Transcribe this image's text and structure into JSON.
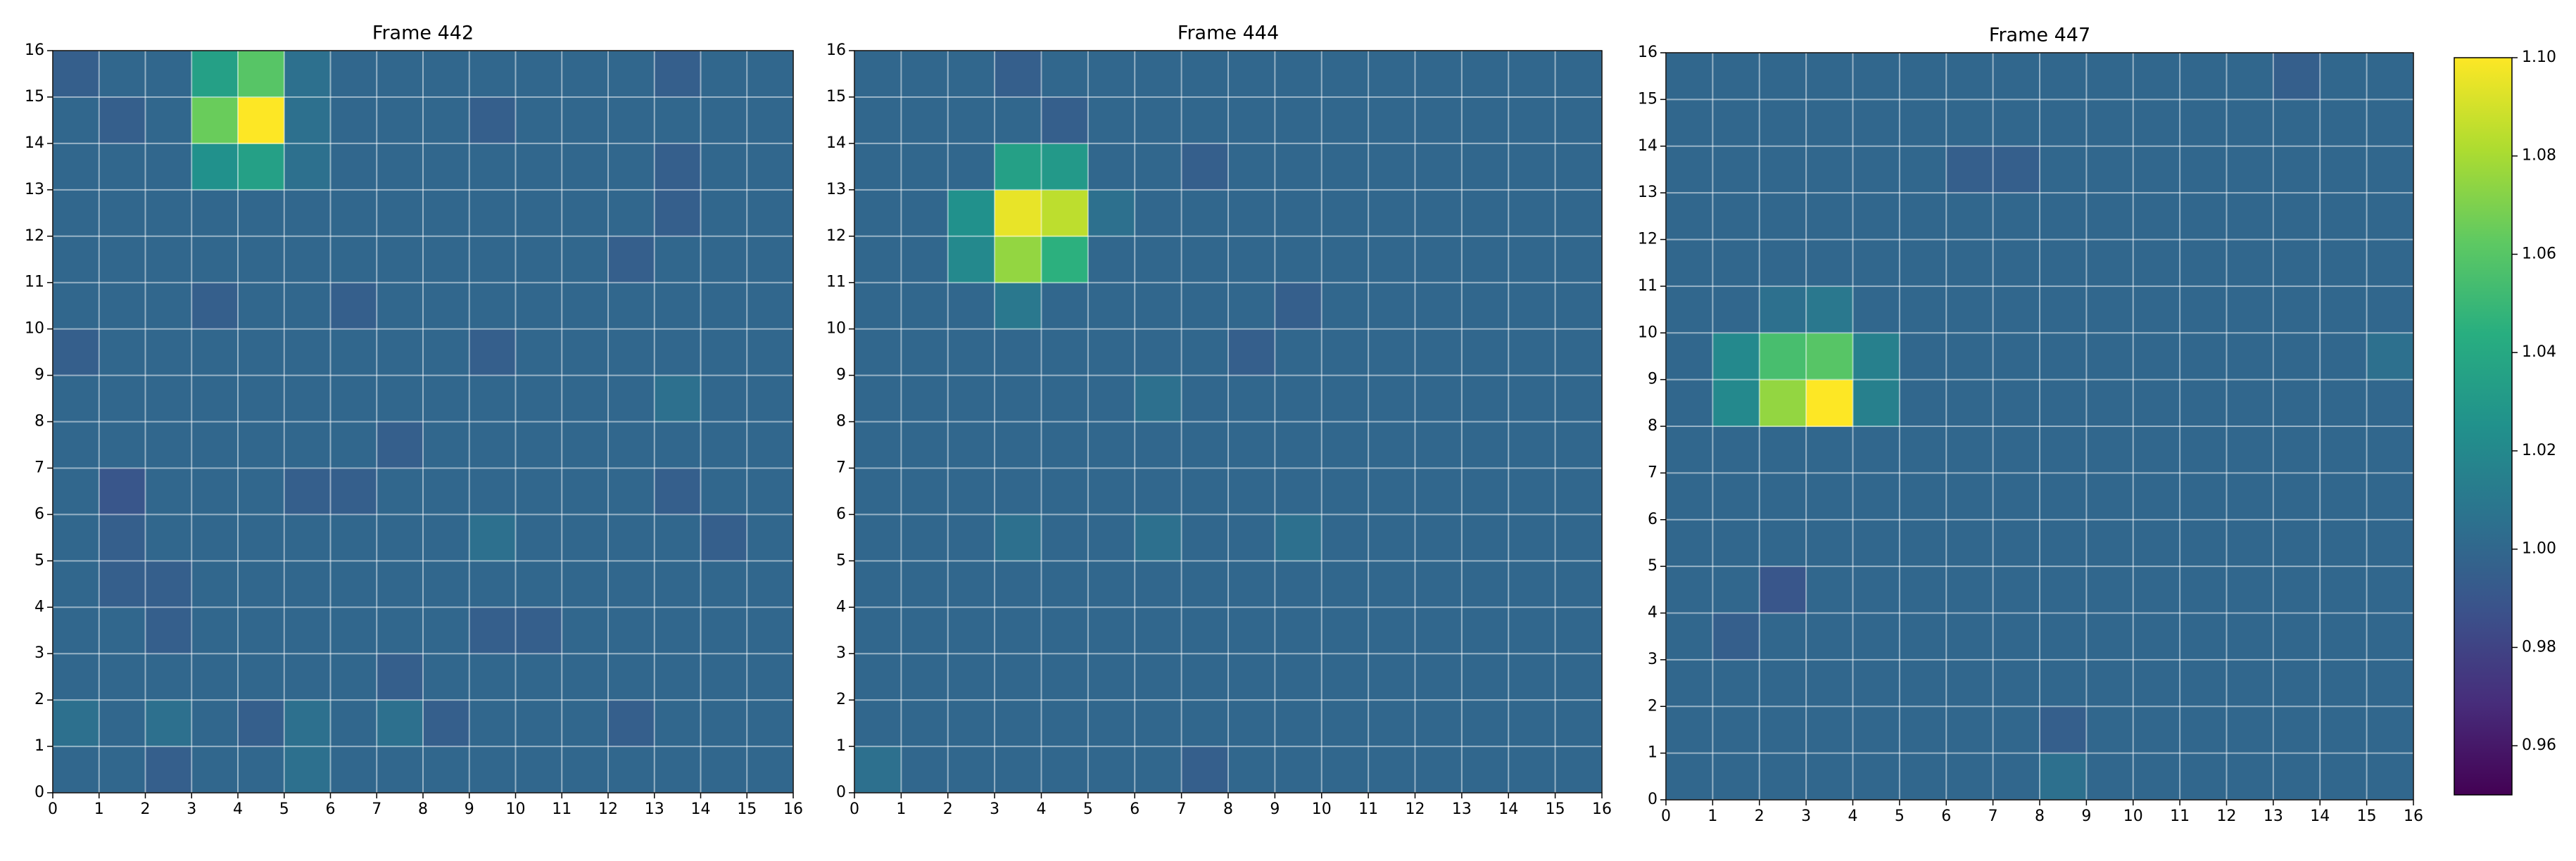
{
  "chart_data": [
    {
      "type": "heatmap",
      "title": "Frame 442",
      "xlim": [
        0,
        16
      ],
      "ylim": [
        0,
        16
      ],
      "xticks": [
        0,
        1,
        2,
        3,
        4,
        5,
        6,
        7,
        8,
        9,
        10,
        11,
        12,
        13,
        14,
        15,
        16
      ],
      "yticks": [
        0,
        1,
        2,
        3,
        4,
        5,
        6,
        7,
        8,
        9,
        10,
        11,
        12,
        13,
        14,
        15,
        16
      ],
      "grid": true,
      "values": [
        [
          1.0,
          1.0,
          0.995,
          1.0,
          1.0,
          1.005,
          1.0,
          1.0,
          1.0,
          1.0,
          1.0,
          1.0,
          1.0,
          1.0,
          1.0,
          1.0
        ],
        [
          1.005,
          1.0,
          1.005,
          1.0,
          0.995,
          1.005,
          1.0,
          1.005,
          0.995,
          1.0,
          1.0,
          1.0,
          0.995,
          1.0,
          1.0,
          1.0
        ],
        [
          1.0,
          1.0,
          1.0,
          1.0,
          1.0,
          1.0,
          1.0,
          0.995,
          1.0,
          1.0,
          1.0,
          1.0,
          1.0,
          1.0,
          1.0,
          1.0
        ],
        [
          1.0,
          1.0,
          0.995,
          1.0,
          1.0,
          1.0,
          1.0,
          1.0,
          1.0,
          0.995,
          0.995,
          1.0,
          1.0,
          1.0,
          1.0,
          1.0
        ],
        [
          1.0,
          0.995,
          0.995,
          1.0,
          1.0,
          1.0,
          1.0,
          1.0,
          1.0,
          1.0,
          1.0,
          1.0,
          1.0,
          1.0,
          1.0,
          1.0
        ],
        [
          1.0,
          0.995,
          1.0,
          1.0,
          1.0,
          1.0,
          1.0,
          1.0,
          1.0,
          1.005,
          1.0,
          1.0,
          1.0,
          1.0,
          0.995,
          1.0
        ],
        [
          1.0,
          0.99,
          1.0,
          1.0,
          1.0,
          0.995,
          0.995,
          1.0,
          1.0,
          1.0,
          1.0,
          1.0,
          1.0,
          0.995,
          1.0,
          1.0
        ],
        [
          1.0,
          1.0,
          1.0,
          1.0,
          1.0,
          1.0,
          1.0,
          0.995,
          1.0,
          1.0,
          1.0,
          1.0,
          1.0,
          1.0,
          1.0,
          1.0
        ],
        [
          1.0,
          1.0,
          1.0,
          1.0,
          1.0,
          1.0,
          1.0,
          1.0,
          1.0,
          1.0,
          1.0,
          1.0,
          1.0,
          1.005,
          1.0,
          1.0
        ],
        [
          0.995,
          1.0,
          1.0,
          1.0,
          1.0,
          1.0,
          1.0,
          1.0,
          1.0,
          0.995,
          1.0,
          1.0,
          1.0,
          1.0,
          1.0,
          1.0
        ],
        [
          1.0,
          1.0,
          1.0,
          0.995,
          1.0,
          1.0,
          0.995,
          1.0,
          1.0,
          1.0,
          1.0,
          1.0,
          1.0,
          1.0,
          1.0,
          1.0
        ],
        [
          1.0,
          1.0,
          1.0,
          1.0,
          1.0,
          1.0,
          1.0,
          1.0,
          1.0,
          1.0,
          1.0,
          1.0,
          0.995,
          1.0,
          1.0,
          1.0
        ],
        [
          1.0,
          1.0,
          1.0,
          1.0,
          1.0,
          1.0,
          1.0,
          1.0,
          1.0,
          1.0,
          1.0,
          1.0,
          1.0,
          0.995,
          1.0,
          1.0
        ],
        [
          1.0,
          1.0,
          1.0,
          1.025,
          1.035,
          1.005,
          1.0,
          1.0,
          1.0,
          1.0,
          1.0,
          1.0,
          1.0,
          0.995,
          1.0,
          1.0
        ],
        [
          1.0,
          0.995,
          1.0,
          1.065,
          1.1,
          1.005,
          1.0,
          1.0,
          1.0,
          0.995,
          1.0,
          1.0,
          1.0,
          1.0,
          1.0,
          1.0
        ],
        [
          0.995,
          1.0,
          1.0,
          1.035,
          1.06,
          1.005,
          1.0,
          1.0,
          1.0,
          1.0,
          1.0,
          1.0,
          1.0,
          0.995,
          1.0,
          1.0
        ]
      ]
    },
    {
      "type": "heatmap",
      "title": "Frame 444",
      "xlim": [
        0,
        16
      ],
      "ylim": [
        0,
        16
      ],
      "xticks": [
        0,
        1,
        2,
        3,
        4,
        5,
        6,
        7,
        8,
        9,
        10,
        11,
        12,
        13,
        14,
        15,
        16
      ],
      "yticks": [
        0,
        1,
        2,
        3,
        4,
        5,
        6,
        7,
        8,
        9,
        10,
        11,
        12,
        13,
        14,
        15,
        16
      ],
      "grid": true,
      "values": [
        [
          1.005,
          1.0,
          1.0,
          1.0,
          1.0,
          1.0,
          1.0,
          0.995,
          1.0,
          1.0,
          1.0,
          1.0,
          1.0,
          1.0,
          1.0,
          1.0
        ],
        [
          1.0,
          1.0,
          1.0,
          1.0,
          1.0,
          1.0,
          1.0,
          1.0,
          1.0,
          1.0,
          1.0,
          1.0,
          1.0,
          1.0,
          1.0,
          1.0
        ],
        [
          1.0,
          1.0,
          1.0,
          1.0,
          1.0,
          1.0,
          1.0,
          1.0,
          1.0,
          1.0,
          1.0,
          1.0,
          1.0,
          1.0,
          1.0,
          1.0
        ],
        [
          1.0,
          1.0,
          1.0,
          1.0,
          1.0,
          1.0,
          1.0,
          1.0,
          1.0,
          1.0,
          1.0,
          1.0,
          1.0,
          1.0,
          1.0,
          1.0
        ],
        [
          1.0,
          1.0,
          1.0,
          1.0,
          1.0,
          1.0,
          1.0,
          1.0,
          1.0,
          1.0,
          1.0,
          1.0,
          1.0,
          1.0,
          1.0,
          1.0
        ],
        [
          1.0,
          1.0,
          1.0,
          1.005,
          1.0,
          1.0,
          1.005,
          1.0,
          1.0,
          1.005,
          1.0,
          1.0,
          1.0,
          1.0,
          1.0,
          1.0
        ],
        [
          1.0,
          1.0,
          1.0,
          1.0,
          1.0,
          1.0,
          1.0,
          1.0,
          1.0,
          1.0,
          1.0,
          1.0,
          1.0,
          1.0,
          1.0,
          1.0
        ],
        [
          1.0,
          1.0,
          1.0,
          1.0,
          1.0,
          1.0,
          1.0,
          1.0,
          1.0,
          1.0,
          1.0,
          1.0,
          1.0,
          1.0,
          1.0,
          1.0
        ],
        [
          1.0,
          1.0,
          1.0,
          1.0,
          1.0,
          1.0,
          1.005,
          1.0,
          1.0,
          1.0,
          1.0,
          1.0,
          1.0,
          1.0,
          1.0,
          1.0
        ],
        [
          1.0,
          1.0,
          1.0,
          1.0,
          1.0,
          1.0,
          1.0,
          1.0,
          0.995,
          1.0,
          1.0,
          1.0,
          1.0,
          1.0,
          1.0,
          1.0
        ],
        [
          1.0,
          1.0,
          1.0,
          1.01,
          1.0,
          1.0,
          1.0,
          1.0,
          1.0,
          0.995,
          1.0,
          1.0,
          1.0,
          1.0,
          1.0,
          1.0
        ],
        [
          1.0,
          1.0,
          1.02,
          1.075,
          1.045,
          1.0,
          1.0,
          1.0,
          1.0,
          1.0,
          1.0,
          1.0,
          1.0,
          1.0,
          1.0,
          1.0
        ],
        [
          1.0,
          1.0,
          1.025,
          1.095,
          1.085,
          1.005,
          1.0,
          1.0,
          1.0,
          1.0,
          1.0,
          1.0,
          1.0,
          1.0,
          1.0,
          1.0
        ],
        [
          1.0,
          1.0,
          1.0,
          1.035,
          1.03,
          1.0,
          1.0,
          0.995,
          1.0,
          1.0,
          1.0,
          1.0,
          1.0,
          1.0,
          1.0,
          1.0
        ],
        [
          1.0,
          1.0,
          1.0,
          1.0,
          0.995,
          1.0,
          1.0,
          1.0,
          1.0,
          1.0,
          1.0,
          1.0,
          1.0,
          1.0,
          1.0,
          1.0
        ],
        [
          1.0,
          1.0,
          1.0,
          0.995,
          1.0,
          1.0,
          1.0,
          1.0,
          1.0,
          1.0,
          1.0,
          1.0,
          1.0,
          1.0,
          1.0,
          1.0
        ]
      ]
    },
    {
      "type": "heatmap",
      "title": "Frame 447",
      "xlim": [
        0,
        16
      ],
      "ylim": [
        0,
        16
      ],
      "xticks": [
        0,
        1,
        2,
        3,
        4,
        5,
        6,
        7,
        8,
        9,
        10,
        11,
        12,
        13,
        14,
        15,
        16
      ],
      "yticks": [
        0,
        1,
        2,
        3,
        4,
        5,
        6,
        7,
        8,
        9,
        10,
        11,
        12,
        13,
        14,
        15,
        16
      ],
      "grid": true,
      "values": [
        [
          1.0,
          1.0,
          1.0,
          1.0,
          1.0,
          1.0,
          1.0,
          1.0,
          1.005,
          1.0,
          1.0,
          1.0,
          1.0,
          1.0,
          1.0,
          1.0
        ],
        [
          1.0,
          1.0,
          1.0,
          1.0,
          1.0,
          1.0,
          1.0,
          1.0,
          0.995,
          1.0,
          1.0,
          1.0,
          1.0,
          1.0,
          1.0,
          1.0
        ],
        [
          1.0,
          1.0,
          1.0,
          1.0,
          1.0,
          1.0,
          1.0,
          1.0,
          1.0,
          1.0,
          1.0,
          1.0,
          1.0,
          1.0,
          1.0,
          1.0
        ],
        [
          1.0,
          0.995,
          1.0,
          1.0,
          1.0,
          1.0,
          1.0,
          1.0,
          1.0,
          1.0,
          1.0,
          1.0,
          1.0,
          1.0,
          1.0,
          1.0
        ],
        [
          1.0,
          1.0,
          0.99,
          1.0,
          1.0,
          1.0,
          1.0,
          1.0,
          1.0,
          1.0,
          1.0,
          1.0,
          1.0,
          1.0,
          1.0,
          1.0
        ],
        [
          1.0,
          1.0,
          1.0,
          1.0,
          1.0,
          1.0,
          1.0,
          1.0,
          1.0,
          1.0,
          1.0,
          1.0,
          1.0,
          1.0,
          1.0,
          1.0
        ],
        [
          1.0,
          1.0,
          1.0,
          1.0,
          1.0,
          1.0,
          1.0,
          1.0,
          1.0,
          1.0,
          1.0,
          1.0,
          1.0,
          1.0,
          1.0,
          1.0
        ],
        [
          1.0,
          1.0,
          1.0,
          1.0,
          1.0,
          1.0,
          1.0,
          1.0,
          1.0,
          1.0,
          1.0,
          1.0,
          1.0,
          1.0,
          1.0,
          1.0
        ],
        [
          1.0,
          1.02,
          1.075,
          1.1,
          1.015,
          1.0,
          1.0,
          1.0,
          1.0,
          1.0,
          1.0,
          1.0,
          1.0,
          1.0,
          1.0,
          1.0
        ],
        [
          1.0,
          1.02,
          1.055,
          1.06,
          1.015,
          1.0,
          1.0,
          1.0,
          1.0,
          1.0,
          1.0,
          1.0,
          1.0,
          1.0,
          1.0,
          1.005
        ],
        [
          1.0,
          1.0,
          1.005,
          1.01,
          1.0,
          1.0,
          1.0,
          1.0,
          1.0,
          1.0,
          1.0,
          1.0,
          1.0,
          1.0,
          1.0,
          1.0
        ],
        [
          1.0,
          1.0,
          1.0,
          1.0,
          1.0,
          1.0,
          1.0,
          1.0,
          1.0,
          1.0,
          1.0,
          1.0,
          1.0,
          1.0,
          1.0,
          1.0
        ],
        [
          1.0,
          1.0,
          1.0,
          1.0,
          1.0,
          1.0,
          1.0,
          1.0,
          1.0,
          1.0,
          1.0,
          1.0,
          1.0,
          1.0,
          1.0,
          1.0
        ],
        [
          1.0,
          1.0,
          1.0,
          1.0,
          1.0,
          1.0,
          0.995,
          0.995,
          1.0,
          1.0,
          1.0,
          1.0,
          1.0,
          1.0,
          1.0,
          1.0
        ],
        [
          1.0,
          1.0,
          1.0,
          1.0,
          1.0,
          1.0,
          1.0,
          1.0,
          1.0,
          1.0,
          1.0,
          1.0,
          1.0,
          1.0,
          1.0,
          1.0
        ],
        [
          1.0,
          1.0,
          1.0,
          1.0,
          1.0,
          1.0,
          1.0,
          1.0,
          1.0,
          1.0,
          1.0,
          1.0,
          1.0,
          0.995,
          1.0,
          1.0
        ]
      ]
    },
    {
      "type": "colorbar",
      "colormap": "viridis",
      "clim": [
        0.95,
        1.1
      ],
      "ticks": [
        0.96,
        0.98,
        {
          "value": 1,
          "label": "1.00"
        },
        1.02,
        1.04,
        1.06,
        1.08,
        {
          "value": 1.1,
          "label": "1.10"
        }
      ]
    }
  ]
}
